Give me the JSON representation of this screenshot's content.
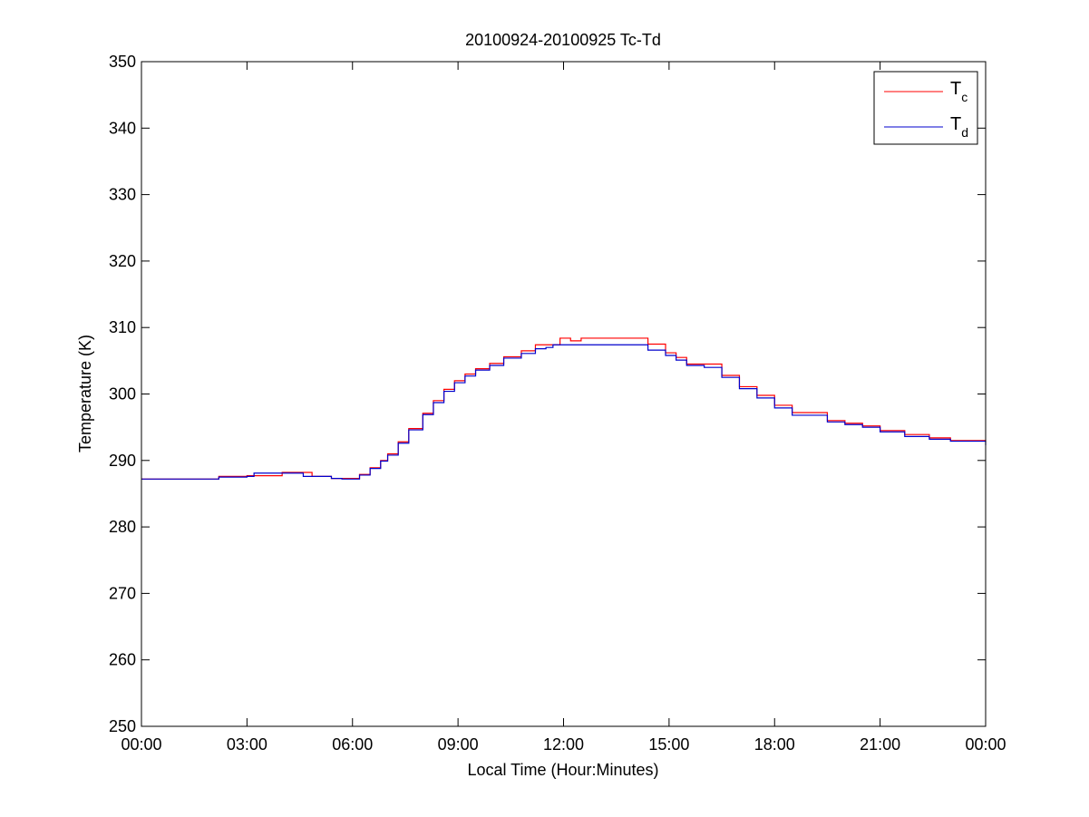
{
  "chart_data": {
    "type": "line",
    "title": "20100924-20100925 Tc-Td",
    "xlabel": "Local Time (Hour:Minutes)",
    "ylabel": "Temperature (K)",
    "x_unit": "hours",
    "xlim": [
      0,
      24
    ],
    "ylim": [
      250,
      350
    ],
    "x_ticks": [
      0,
      3,
      6,
      9,
      12,
      15,
      18,
      21,
      24
    ],
    "x_tick_labels": [
      "00:00",
      "03:00",
      "06:00",
      "09:00",
      "12:00",
      "15:00",
      "18:00",
      "21:00",
      "00:00"
    ],
    "y_ticks": [
      250,
      260,
      270,
      280,
      290,
      300,
      310,
      320,
      330,
      340,
      350
    ],
    "y_tick_labels": [
      "250",
      "260",
      "270",
      "280",
      "290",
      "300",
      "310",
      "320",
      "330",
      "340",
      "350"
    ],
    "grid": false,
    "legend": {
      "position": "top-right"
    },
    "series": [
      {
        "name": "T",
        "subscript": "c",
        "color": "#ff0000",
        "x": [
          0,
          2.0,
          2.2,
          3.0,
          4.0,
          4.6,
          4.85,
          5.4,
          5.7,
          6.0,
          6.2,
          6.5,
          6.8,
          7.0,
          7.3,
          7.6,
          8.0,
          8.3,
          8.6,
          8.9,
          9.2,
          9.5,
          9.9,
          10.3,
          10.8,
          11.2,
          11.9,
          12.2,
          12.5,
          14.1,
          14.4,
          14.9,
          15.2,
          15.5,
          16.0,
          16.5,
          17.0,
          17.5,
          18.0,
          18.5,
          19.5,
          20.0,
          20.5,
          21.0,
          21.7,
          22.4,
          23.0,
          24.0
        ],
        "y": [
          287.2,
          287.2,
          287.6,
          287.7,
          288.2,
          288.2,
          287.6,
          287.3,
          287.3,
          287.3,
          287.9,
          288.9,
          290.0,
          291.0,
          292.8,
          294.8,
          297.1,
          299.0,
          300.7,
          302.0,
          303.0,
          303.8,
          304.6,
          305.6,
          306.5,
          307.4,
          308.4,
          308.0,
          308.4,
          308.4,
          307.5,
          306.2,
          305.5,
          304.5,
          304.5,
          302.8,
          301.1,
          299.8,
          298.3,
          297.2,
          296.0,
          295.6,
          295.2,
          294.5,
          293.9,
          293.4,
          293.0,
          292.9
        ]
      },
      {
        "name": "T",
        "subscript": "d",
        "color": "#0000cc",
        "x": [
          0,
          2.0,
          2.2,
          3.0,
          3.2,
          4.0,
          4.6,
          5.4,
          5.7,
          6.0,
          6.2,
          6.5,
          6.8,
          7.0,
          7.3,
          7.6,
          8.0,
          8.3,
          8.6,
          8.9,
          9.2,
          9.5,
          9.9,
          10.3,
          10.8,
          11.2,
          11.5,
          11.7,
          12.0,
          14.1,
          14.4,
          14.9,
          15.2,
          15.5,
          16.0,
          16.5,
          17.0,
          17.5,
          18.0,
          18.5,
          19.5,
          20.0,
          20.5,
          21.0,
          21.7,
          22.4,
          23.0,
          23.8,
          24.0
        ],
        "y": [
          287.2,
          287.2,
          287.5,
          287.6,
          288.1,
          288.1,
          287.6,
          287.3,
          287.2,
          287.2,
          287.8,
          288.8,
          289.9,
          290.8,
          292.6,
          294.6,
          296.9,
          298.7,
          300.4,
          301.7,
          302.7,
          303.6,
          304.3,
          305.4,
          306.1,
          306.8,
          307.0,
          307.4,
          307.4,
          307.4,
          306.6,
          305.8,
          305.1,
          304.3,
          304.0,
          302.5,
          300.8,
          299.4,
          297.9,
          296.8,
          295.8,
          295.4,
          295.0,
          294.3,
          293.6,
          293.2,
          292.9,
          292.9,
          292.3
        ]
      }
    ]
  }
}
